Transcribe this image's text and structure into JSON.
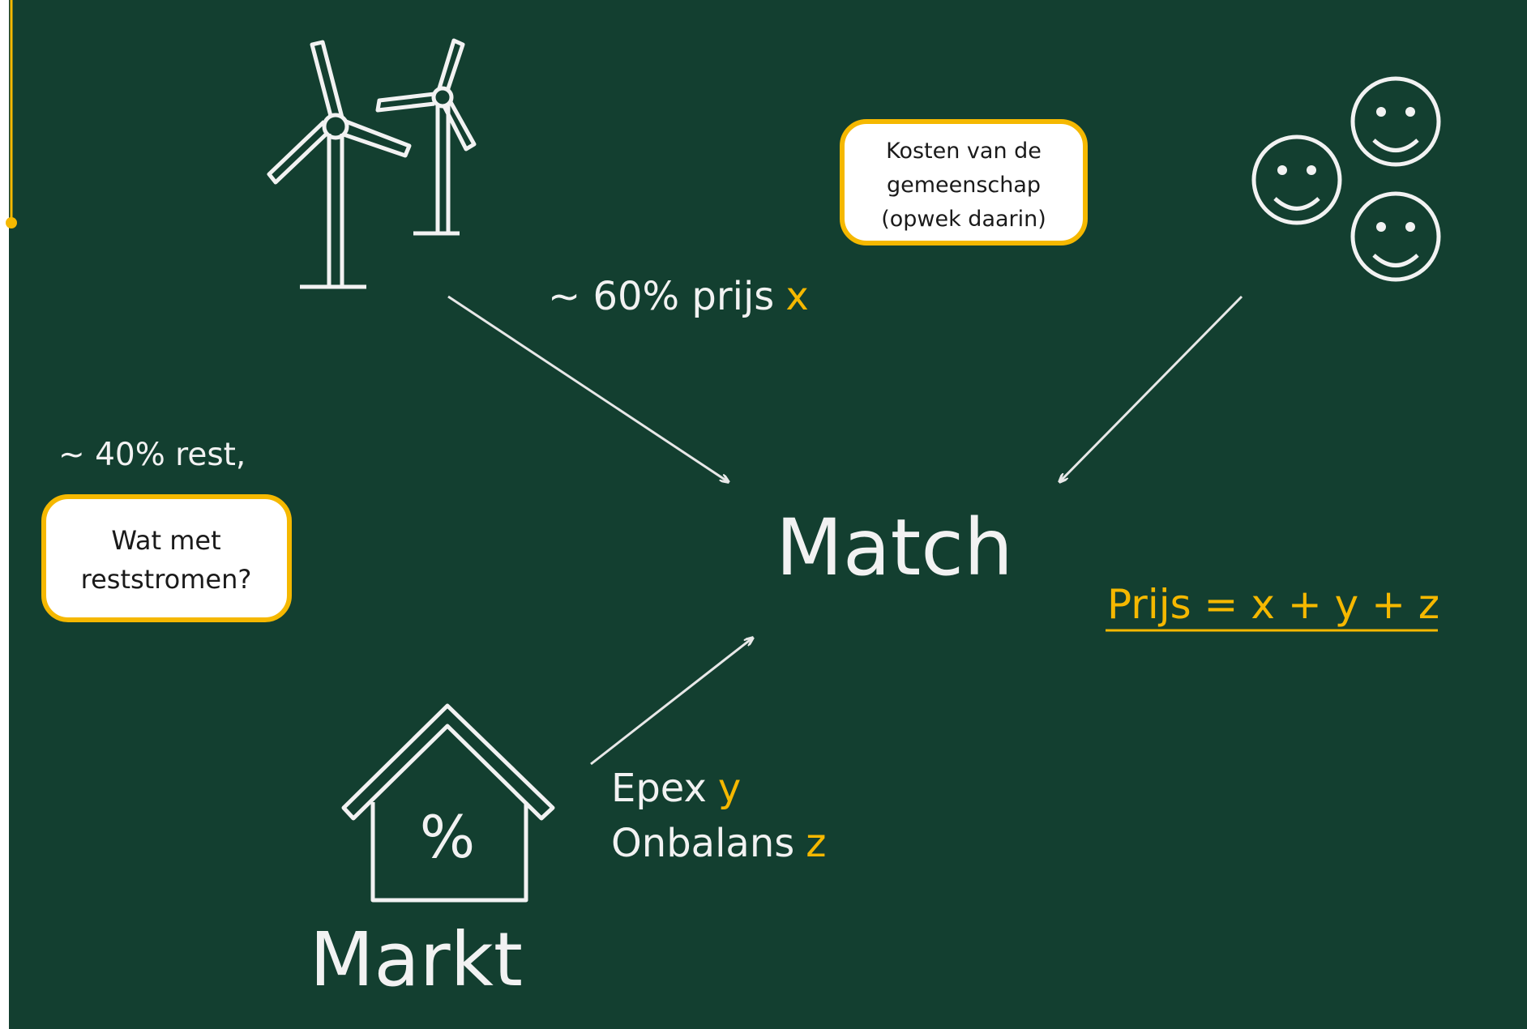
{
  "top": {
    "label": "~ 60% prijs",
    "var": "x"
  },
  "cost_box": {
    "lines": [
      "Kosten van de",
      "gemeenschap",
      "(opwek daarin)"
    ]
  },
  "left": {
    "label": "~ 40% rest,",
    "box_lines": [
      "Wat met",
      "reststromen?"
    ]
  },
  "center": {
    "label": "Match"
  },
  "formula": {
    "label": "Prijs = x + y + z"
  },
  "market": {
    "icon": "%",
    "label": "Markt",
    "items": [
      {
        "label": "Epex",
        "var": "y"
      },
      {
        "label": "Onbalans",
        "var": "z"
      }
    ]
  }
}
